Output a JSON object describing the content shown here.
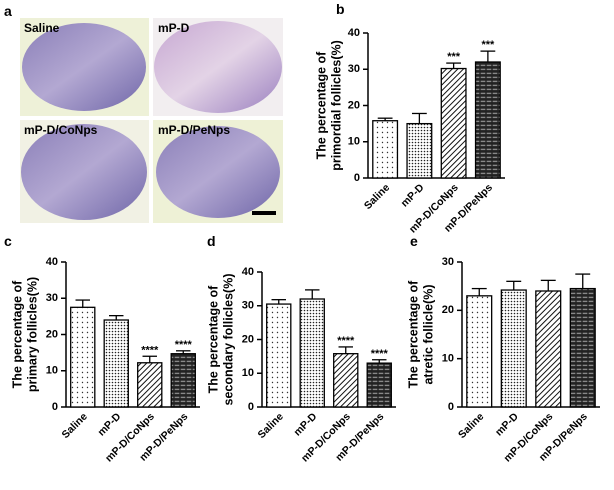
{
  "image_panel": {
    "label": "a",
    "captions": [
      "Saline",
      "mP-D",
      "mP-D/CoNps",
      "mP-D/PeNps"
    ]
  },
  "chart_data": [
    {
      "type": "bar",
      "label": "b",
      "ylabel": [
        "The percentage of",
        "primordial follicles(%)"
      ],
      "categories": [
        "Saline",
        "mP-D",
        "mP-D/CoNps",
        "mP-D/PeNps"
      ],
      "values": [
        15.8,
        15,
        30.2,
        32
      ],
      "errors": [
        0.7,
        2.8,
        1.5,
        3
      ],
      "significance": [
        null,
        null,
        "***",
        "***"
      ],
      "ylim": [
        0,
        40
      ],
      "yticks": [
        0,
        10,
        20,
        30,
        40
      ]
    },
    {
      "type": "bar",
      "label": "c",
      "ylabel": [
        "The percentage of",
        "primary follicles(%)"
      ],
      "categories": [
        "Saline",
        "mP-D",
        "mP-D/CoNps",
        "mP-D/PeNps"
      ],
      "values": [
        27.5,
        24,
        12.2,
        14.7
      ],
      "errors": [
        2,
        1.2,
        1.8,
        0.8
      ],
      "significance": [
        null,
        null,
        "****",
        "****"
      ],
      "ylim": [
        0,
        40
      ],
      "yticks": [
        0,
        10,
        20,
        30,
        40
      ]
    },
    {
      "type": "bar",
      "label": "d",
      "ylabel": [
        "The percentage of",
        "secondary follicles(%)"
      ],
      "categories": [
        "Saline",
        "mP-D",
        "mP-D/CoNps",
        "mP-D/PeNps"
      ],
      "values": [
        30.5,
        32,
        15.8,
        13
      ],
      "errors": [
        1.3,
        2.7,
        2,
        1
      ],
      "significance": [
        null,
        null,
        "****",
        "****"
      ],
      "ylim": [
        0,
        40
      ],
      "yticks": [
        0,
        10,
        20,
        30,
        40
      ]
    },
    {
      "type": "bar",
      "label": "e",
      "ylabel": [
        "The percentage of",
        "atretic follicle(%)"
      ],
      "categories": [
        "Saline",
        "mP-D",
        "mP-D/CoNps",
        "mP-D/PeNps"
      ],
      "values": [
        23,
        24.2,
        24,
        24.5
      ],
      "errors": [
        1.5,
        1.8,
        2.2,
        3
      ],
      "significance": [
        null,
        null,
        null,
        null
      ],
      "ylim": [
        0,
        30
      ],
      "yticks": [
        0,
        10,
        20,
        30
      ]
    }
  ]
}
